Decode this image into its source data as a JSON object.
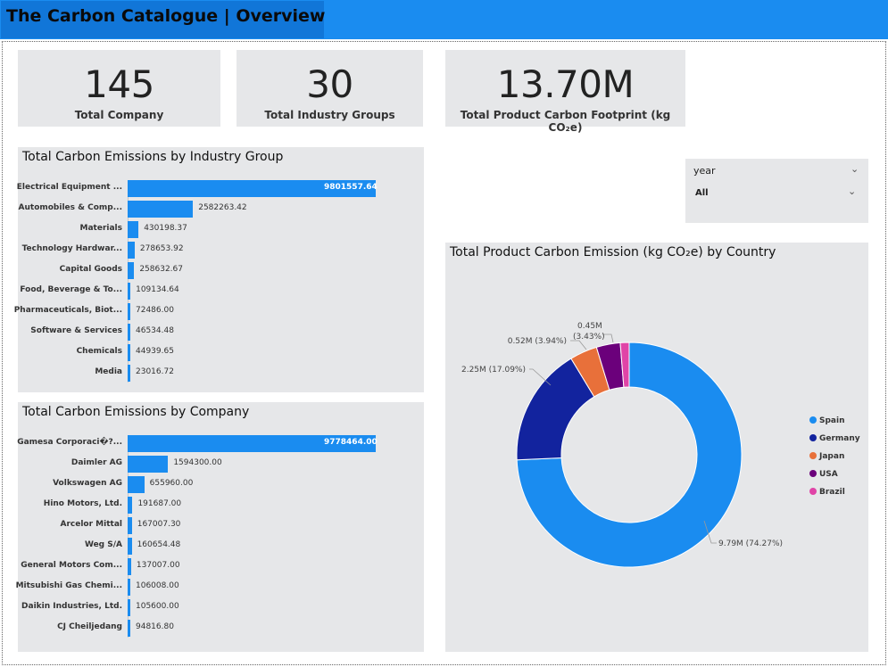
{
  "header": {
    "title": "The Carbon Catalogue | Overview"
  },
  "kpis": [
    {
      "value": "145",
      "label": "Total Company"
    },
    {
      "value": "30",
      "label": "Total Industry Groups"
    },
    {
      "value": "13.70M",
      "label": "Total Product Carbon Footprint (kg CO₂e)"
    }
  ],
  "slicer": {
    "label": "year",
    "value": "All"
  },
  "colors": {
    "accent": "#1a8cf0",
    "panel": "#e6e7e9"
  },
  "chart_data": [
    {
      "type": "bar",
      "title": "Total Carbon Emissions by Industry Group",
      "categories": [
        "Electrical Equipment ...",
        "Automobiles & Comp...",
        "Materials",
        "Technology Hardwar...",
        "Capital Goods",
        "Food, Beverage & To...",
        "Pharmaceuticals, Biot...",
        "Software & Services",
        "Chemicals",
        "Media"
      ],
      "values": [
        9801557.64,
        2582263.42,
        430198.37,
        278653.92,
        258632.67,
        109134.64,
        72486.0,
        46534.48,
        44939.65,
        23016.72
      ],
      "labels": [
        "9801557.64",
        "2582263.42",
        "430198.37",
        "278653.92",
        "258632.67",
        "109134.64",
        "72486.00",
        "46534.48",
        "44939.65",
        "23016.72"
      ],
      "max": 9801557.64
    },
    {
      "type": "bar",
      "title": "Total Carbon Emissions by Company",
      "categories": [
        "Gamesa Corporaci�?...",
        "Daimler AG",
        "Volkswagen AG",
        "Hino Motors, Ltd.",
        "Arcelor Mittal",
        "Weg S/A",
        "General Motors Com...",
        "Mitsubishi Gas Chemi...",
        "Daikin Industries, Ltd.",
        "CJ Cheiljedang"
      ],
      "values": [
        9778464.0,
        1594300.0,
        655960.0,
        191687.0,
        167007.3,
        160654.48,
        137007.0,
        106008.0,
        105600.0,
        94816.8
      ],
      "labels": [
        "9778464.00",
        "1594300.00",
        "655960.00",
        "191687.00",
        "167007.30",
        "160654.48",
        "137007.00",
        "106008.00",
        "105600.00",
        "94816.80"
      ],
      "max": 9778464.0
    },
    {
      "type": "pie",
      "title": "Total Product Carbon Emission (kg CO₂e) by Country",
      "categories": [
        "Spain",
        "Germany",
        "Japan",
        "USA",
        "Brazil"
      ],
      "values": [
        74.27,
        17.09,
        3.94,
        3.43,
        1.27
      ],
      "colors": [
        "#1a8cf0",
        "#12239e",
        "#e8703a",
        "#6b007b",
        "#e044a7"
      ],
      "slice_labels": [
        "9.79M (74.27%)",
        "2.25M (17.09%)",
        "0.52M (3.94%)",
        "0.45M",
        "(3.43%)"
      ]
    }
  ]
}
